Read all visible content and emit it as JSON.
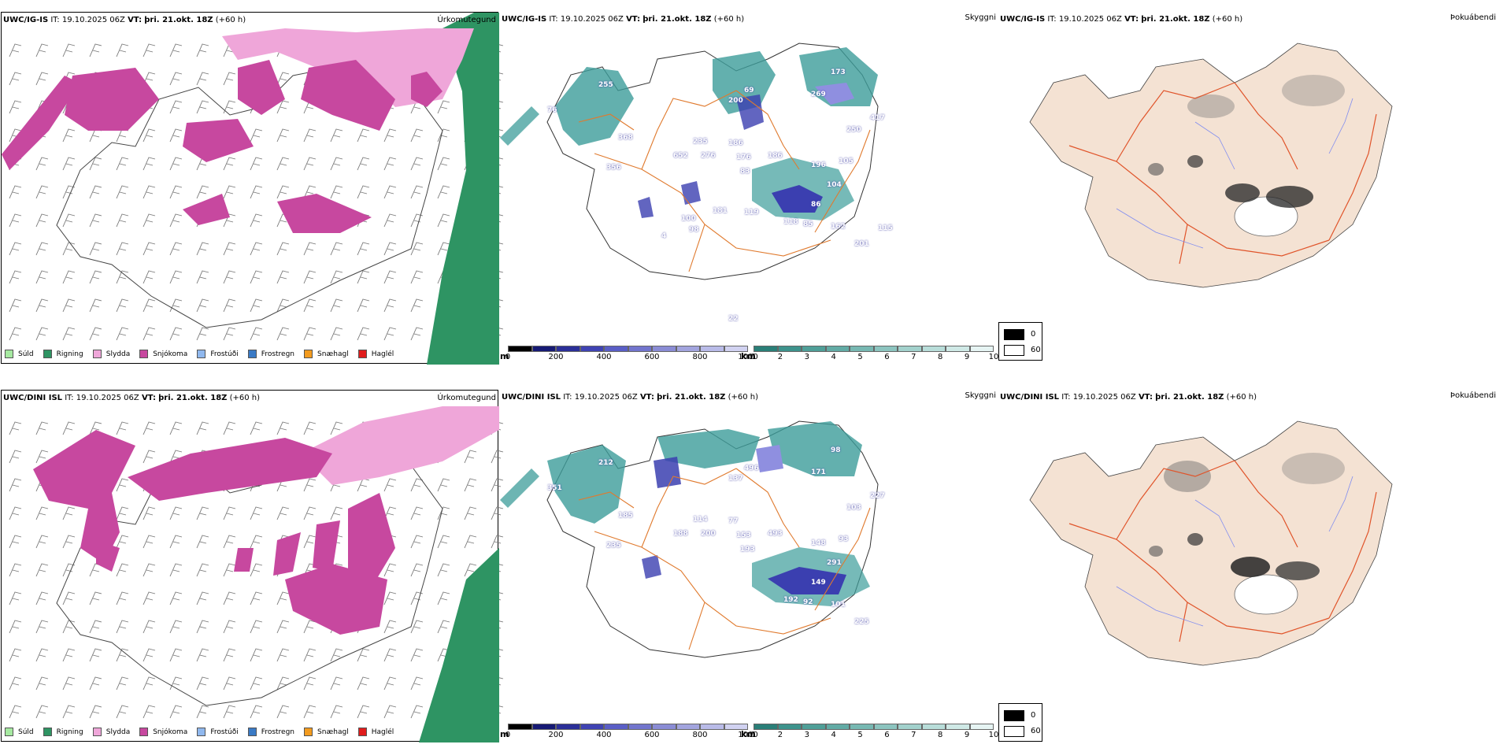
{
  "colors": {
    "sudd": "#a6e9a1",
    "rigning": "#2e9463",
    "slydda": "#efa6d9",
    "snjokoma": "#c7489f",
    "frostudi": "#90b8ee",
    "frostregn": "#3a7ac5",
    "snaehagl": "#f39b1e",
    "haglel": "#e01c1c",
    "cloud_teal": "#3c9c9a",
    "cloud_blue": "#3b3fb0",
    "road_orange": "#e07a2e",
    "fog_land": "#f4e2d3"
  },
  "rows": [
    {
      "precip": {
        "model": "UWC/IG-IS",
        "it_label": "IT:",
        "it_value": "19.10.2025 06Z",
        "vt_label": "VT:",
        "vt_value": "þri. 21.okt. 18Z",
        "lead": "(+60 h)",
        "title_right": "Úrkomutegund"
      },
      "cloud": {
        "model": "UWC/IG-IS",
        "it_label": "IT:",
        "it_value": "19.10.2025 06Z",
        "vt_label": "VT:",
        "vt_value": "þri. 21.okt. 18Z",
        "lead": "(+60 h)",
        "title_right": "Skyggni",
        "numbers": [
          "255",
          "76",
          "368",
          "356",
          "652",
          "276",
          "235",
          "186",
          "176",
          "83",
          "186",
          "200",
          "69",
          "269",
          "173",
          "417",
          "250",
          "104",
          "86",
          "196",
          "105",
          "118",
          "85",
          "162",
          "201",
          "115",
          "119",
          "181",
          "100",
          "98",
          "4",
          "22"
        ]
      },
      "fog": {
        "model": "UWC/IG-IS",
        "it_label": "IT:",
        "it_value": "19.10.2025 06Z",
        "vt_label": "VT:",
        "vt_value": "þri. 21.okt. 18Z",
        "lead": "(+60 h)",
        "title_right": "Þokuábendi"
      }
    },
    {
      "precip": {
        "model": "UWC/DINI ISL",
        "it_label": "IT:",
        "it_value": "19.10.2025 06Z",
        "vt_label": "VT:",
        "vt_value": "þri. 21.okt. 18Z",
        "lead": "(+60 h)",
        "title_right": "Úrkomutegund"
      },
      "cloud": {
        "model": "UWC/DINI ISL",
        "it_label": "IT:",
        "it_value": "19.10.2025 06Z",
        "vt_label": "VT:",
        "vt_value": "þri. 21.okt. 18Z",
        "lead": "(+60 h)",
        "title_right": "Skyggni",
        "numbers": [
          "212",
          "351",
          "185",
          "235",
          "188",
          "200",
          "114",
          "77",
          "153",
          "193",
          "493",
          "137",
          "496",
          "171",
          "98",
          "227",
          "103",
          "291",
          "149",
          "148",
          "93",
          "192",
          "92",
          "101",
          "225"
        ]
      },
      "fog": {
        "model": "UWC/DINI ISL",
        "it_label": "IT:",
        "it_value": "19.10.2025 06Z",
        "vt_label": "VT:",
        "vt_value": "þri. 21.okt. 18Z",
        "lead": "(+60 h)",
        "title_right": "Þokuábendi"
      }
    }
  ],
  "precip_legend": [
    "Súld",
    "Rigning",
    "Slydda",
    "Snjókoma",
    "Frostúði",
    "Frostregn",
    "Snæhagl",
    "Haglél"
  ],
  "m_scale": {
    "unit": "m",
    "ticks": [
      "0",
      "200",
      "400",
      "600",
      "800",
      "1000"
    ]
  },
  "km_scale": {
    "unit": "km",
    "ticks": [
      "1",
      "2",
      "3",
      "4",
      "5",
      "6",
      "7",
      "8",
      "9",
      "10"
    ]
  },
  "fog_legend": [
    "0",
    "60"
  ]
}
